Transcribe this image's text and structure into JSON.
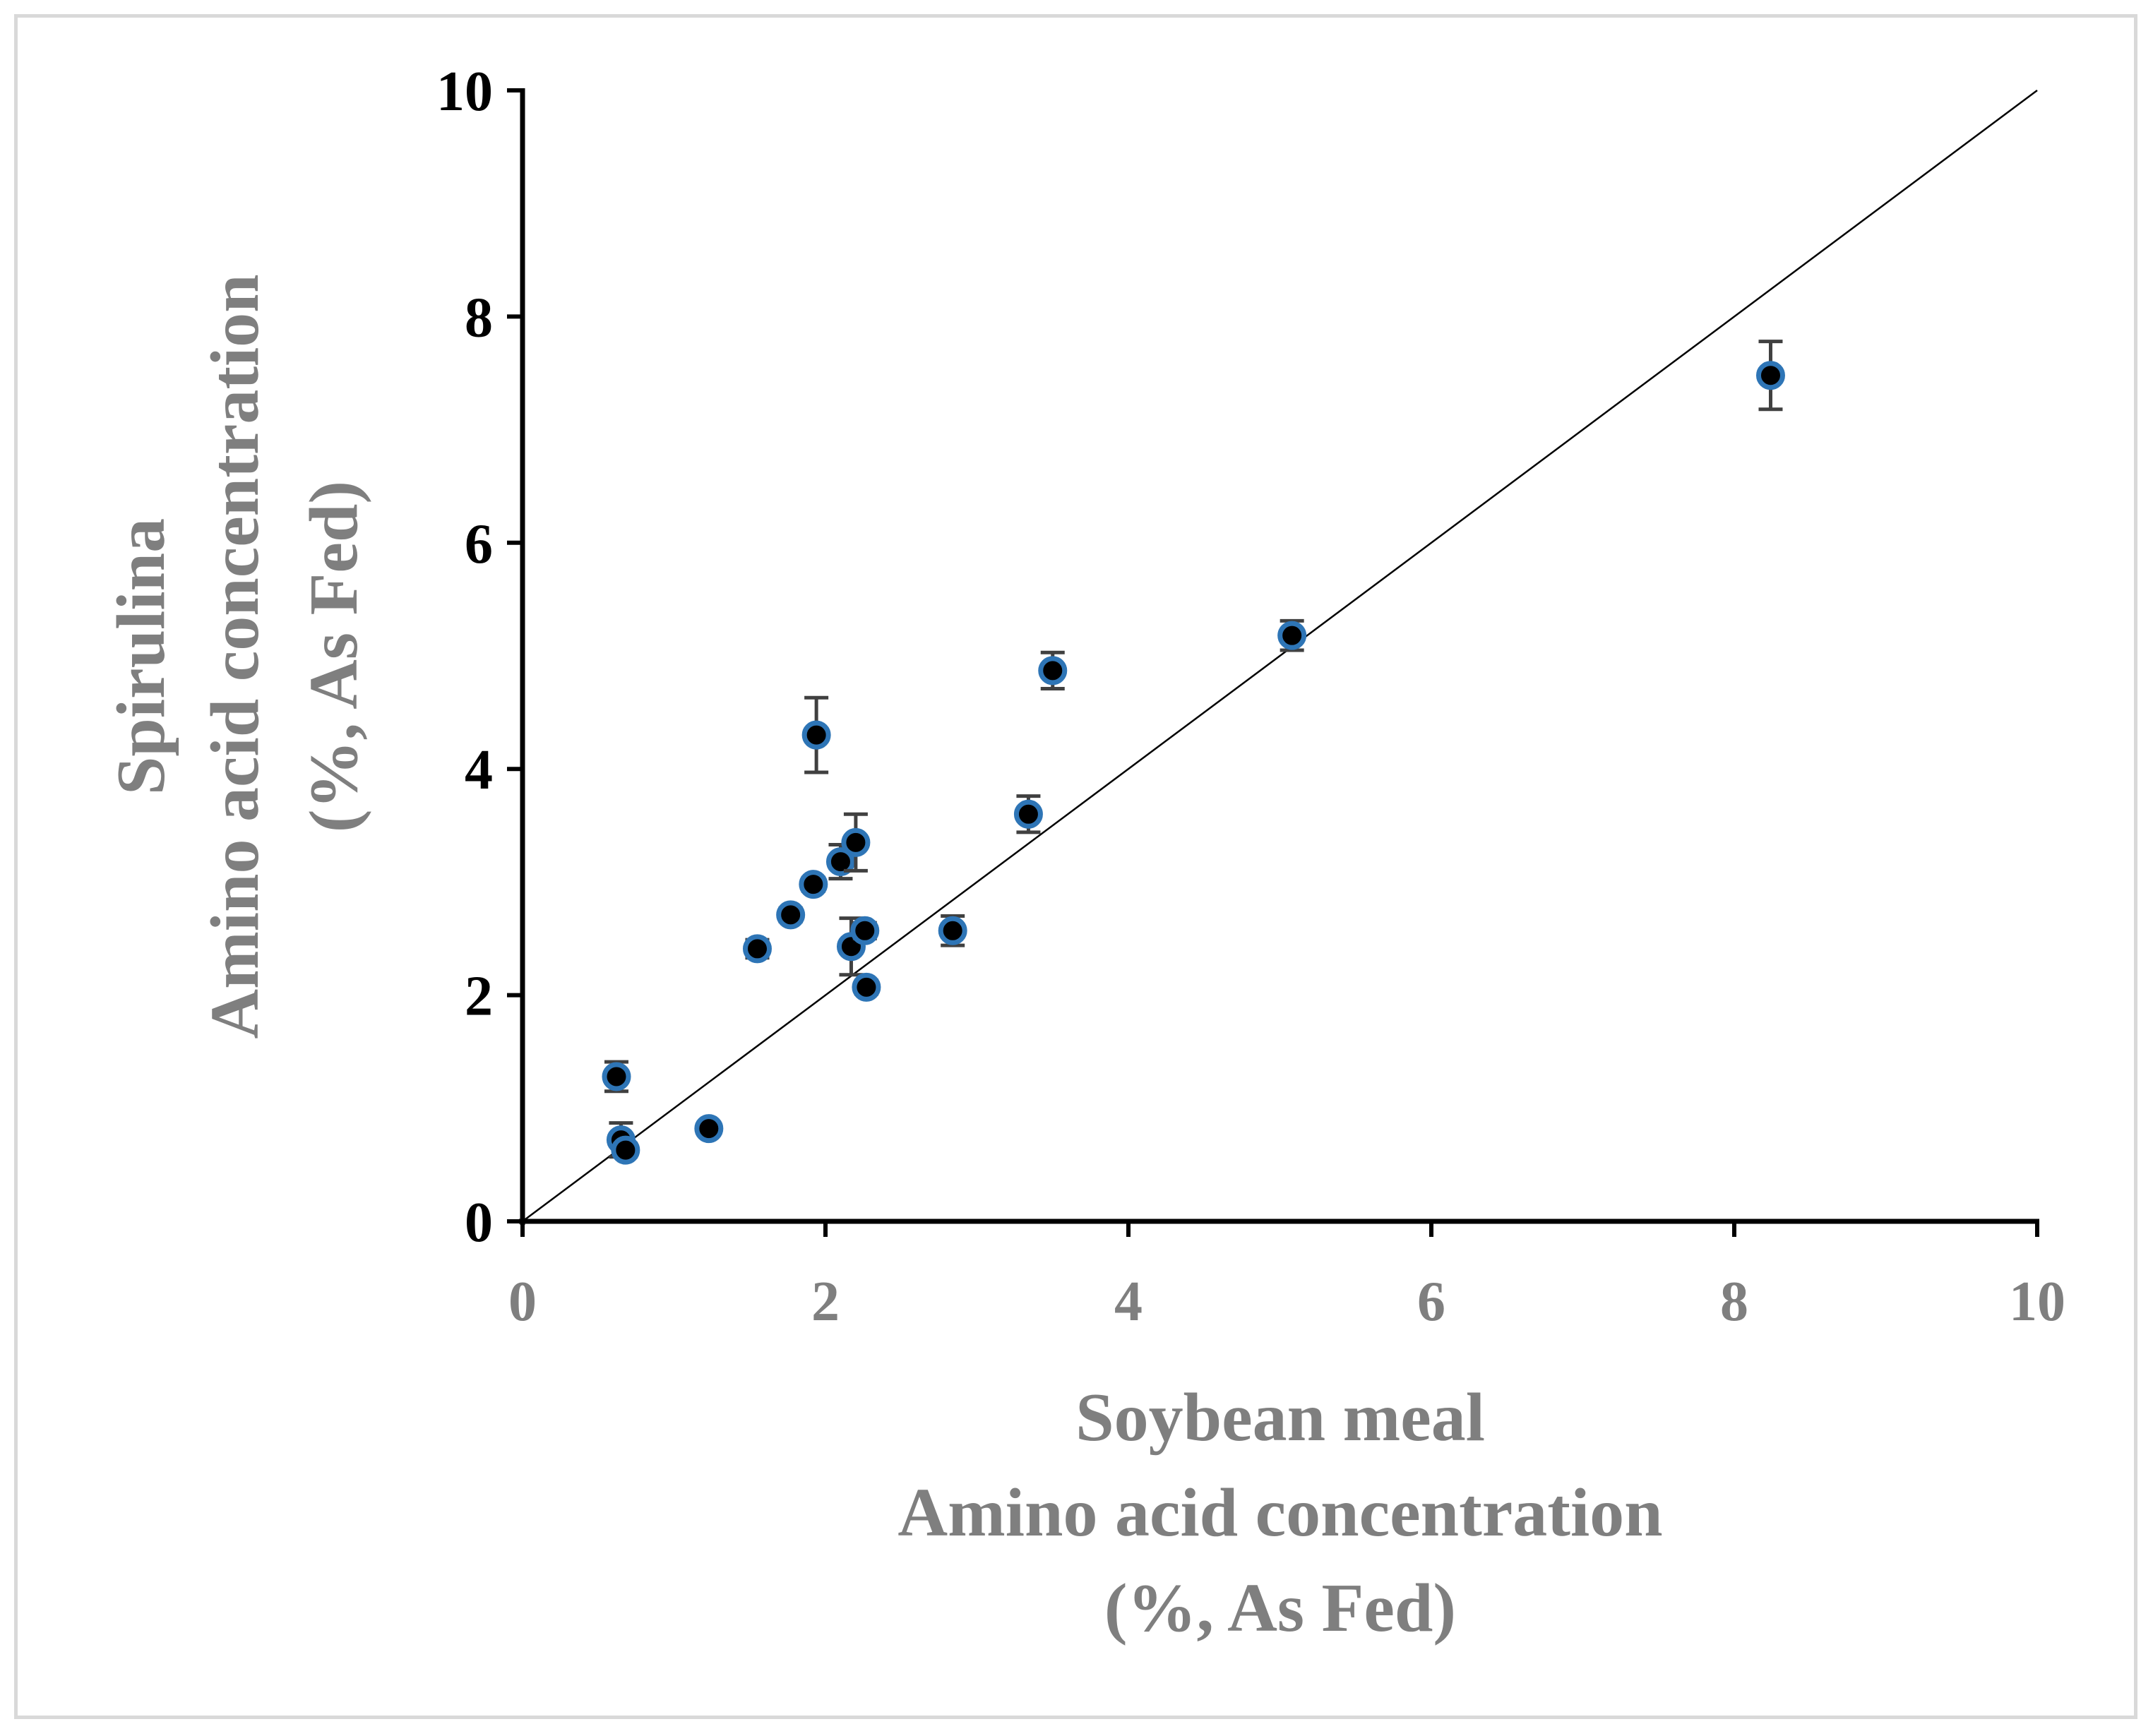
{
  "colors": {
    "axis": "#000000",
    "marker_fill": "#000000",
    "marker_edge": "#2e75b6",
    "error_bar": "#404040",
    "title_gray": "#7f7f7f"
  },
  "chart_data": {
    "type": "scatter",
    "title": "",
    "xlabel_lines": [
      "Soybean meal",
      "Amino acid concentration",
      "(%, As Fed)"
    ],
    "ylabel_lines": [
      "Spirulina",
      "Amino acid concentration",
      "(%, As Fed)"
    ],
    "xlim": [
      0,
      10
    ],
    "ylim": [
      0,
      10
    ],
    "xticks": [
      0,
      2,
      4,
      6,
      8,
      10
    ],
    "yticks": [
      0,
      2,
      4,
      6,
      8,
      10
    ],
    "grid": false,
    "legend": "none",
    "reference_line": {
      "from": [
        0,
        0
      ],
      "to": [
        10,
        10
      ]
    },
    "points": [
      {
        "x": 0.62,
        "y": 1.28,
        "err": 0.13
      },
      {
        "x": 0.65,
        "y": 0.72,
        "err": 0.15
      },
      {
        "x": 0.68,
        "y": 0.63,
        "err": 0.06
      },
      {
        "x": 1.23,
        "y": 0.82,
        "err": 0.05
      },
      {
        "x": 1.55,
        "y": 2.41,
        "err": 0.08
      },
      {
        "x": 1.77,
        "y": 2.71,
        "err": 0.06
      },
      {
        "x": 1.92,
        "y": 2.98,
        "err": 0.06
      },
      {
        "x": 1.94,
        "y": 4.3,
        "err": 0.33
      },
      {
        "x": 2.1,
        "y": 3.18,
        "err": 0.15
      },
      {
        "x": 2.2,
        "y": 3.35,
        "err": 0.25
      },
      {
        "x": 2.17,
        "y": 2.43,
        "err": 0.25
      },
      {
        "x": 2.26,
        "y": 2.57,
        "err": 0.07
      },
      {
        "x": 2.27,
        "y": 2.07,
        "err": 0.06
      },
      {
        "x": 2.84,
        "y": 2.57,
        "err": 0.13
      },
      {
        "x": 3.34,
        "y": 3.6,
        "err": 0.16
      },
      {
        "x": 3.5,
        "y": 4.87,
        "err": 0.16
      },
      {
        "x": 5.08,
        "y": 5.18,
        "err": 0.13
      },
      {
        "x": 8.24,
        "y": 7.48,
        "err": 0.3
      }
    ]
  }
}
